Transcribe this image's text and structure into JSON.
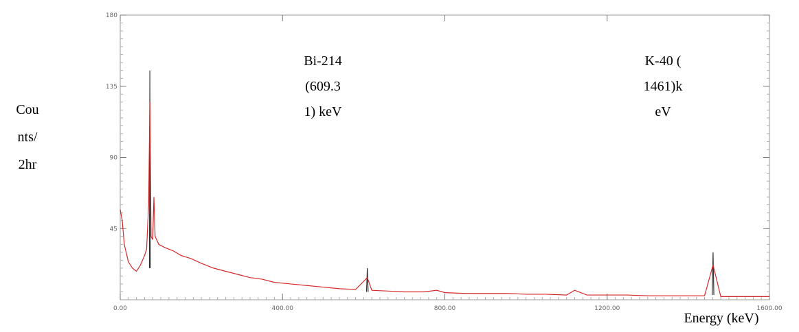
{
  "chart_data": {
    "type": "line",
    "y_label_lines": [
      "Cou",
      "nts/",
      "2hr"
    ],
    "x_label": "Energy (keV)",
    "annotations": [
      {
        "lines": [
          "Bi-214",
          "(609.3",
          "1) keV"
        ]
      },
      {
        "lines": [
          "K-40 (",
          "1461)k",
          "eV"
        ]
      }
    ],
    "xlim": [
      0,
      1600
    ],
    "ylim": [
      0,
      180
    ],
    "xticks": [
      {
        "value": 0,
        "label": "0.00"
      },
      {
        "value": 400,
        "label": "400.00"
      },
      {
        "value": 800,
        "label": "800.00"
      },
      {
        "value": 1200,
        "label": "1200.00"
      },
      {
        "value": 1600,
        "label": "1600.00"
      }
    ],
    "yticks": [
      45,
      90,
      135,
      180
    ],
    "series": [
      {
        "color": "#333333",
        "x": [
          72,
          73,
          74,
          300,
          607,
          609,
          611,
          1000,
          1459,
          1461,
          1463
        ],
        "values": [
          20,
          145,
          20,
          null,
          5,
          20,
          5,
          null,
          3,
          30,
          3
        ]
      },
      {
        "color": "#d62728",
        "x": [
          0,
          5,
          10,
          20,
          30,
          40,
          50,
          60,
          65,
          70,
          73,
          76,
          80,
          83,
          86,
          95,
          110,
          130,
          150,
          175,
          200,
          230,
          260,
          290,
          320,
          350,
          380,
          420,
          460,
          500,
          540,
          580,
          609,
          620,
          660,
          700,
          750,
          780,
          800,
          850,
          900,
          950,
          1000,
          1050,
          1100,
          1120,
          1150,
          1200,
          1250,
          1300,
          1350,
          1400,
          1440,
          1461,
          1480,
          1520,
          1560,
          1600
        ],
        "values": [
          57,
          50,
          35,
          24,
          20,
          18,
          22,
          28,
          32,
          60,
          125,
          40,
          38,
          65,
          40,
          35,
          33,
          31,
          28,
          26,
          23,
          20,
          18,
          16,
          14,
          13,
          11,
          10,
          9,
          8,
          7,
          6.5,
          14,
          6,
          5.5,
          5,
          5,
          6,
          4.5,
          4,
          4,
          4,
          3.5,
          3.5,
          3,
          6,
          3,
          3,
          3,
          2.5,
          2.5,
          2.5,
          2.5,
          22,
          2,
          2,
          2,
          2
        ]
      }
    ]
  }
}
